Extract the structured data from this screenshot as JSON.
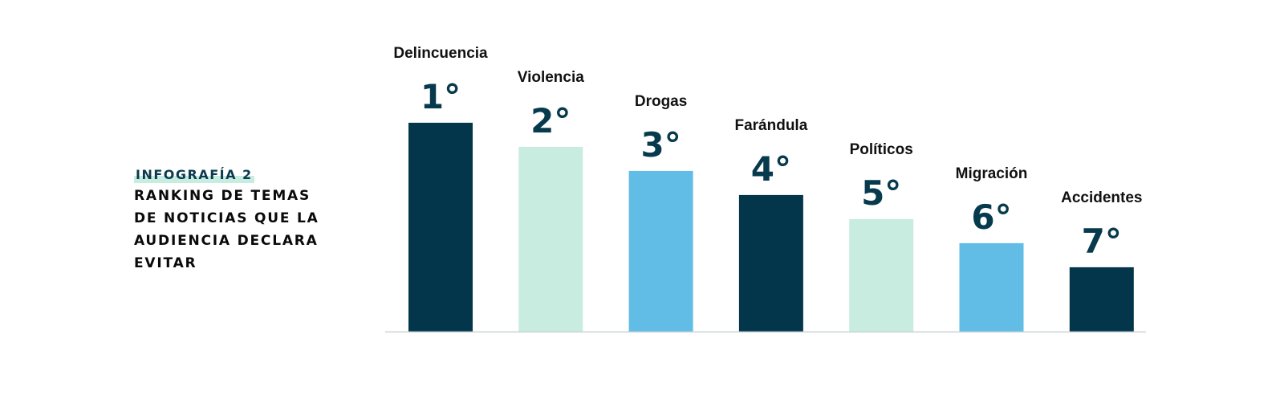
{
  "infographic": {
    "kicker": "INFOGRAFÍA 2",
    "title_lines": [
      "RANKING DE TEMAS",
      "DE NOTICIAS QUE LA",
      "AUDIENCIA DECLARA",
      "EVITAR"
    ]
  },
  "chart_data": {
    "type": "bar",
    "title": "RANKING DE TEMAS DE NOTICIAS QUE LA AUDIENCIA DECLARA EVITAR",
    "categories": [
      "Delincuencia",
      "Violencia",
      "Drogas",
      "Farándula",
      "Políticos",
      "Migración",
      "Accidentes"
    ],
    "ranks": [
      "1°",
      "2°",
      "3°",
      "4°",
      "5°",
      "6°",
      "7°"
    ],
    "values": [
      7,
      6,
      5,
      4,
      3,
      2,
      1
    ],
    "bar_colors": [
      "#03364a",
      "#c8ece0",
      "#62bde6",
      "#03364a",
      "#c8ece0",
      "#62bde6",
      "#03364a"
    ],
    "ylim": [
      -1.67,
      7
    ],
    "grid": false,
    "legend": "none"
  },
  "colors": {
    "dark_navy": "#03364a",
    "mint": "#c8ece0",
    "sky_blue": "#62bde6",
    "baseline": "#c9d3d6"
  }
}
